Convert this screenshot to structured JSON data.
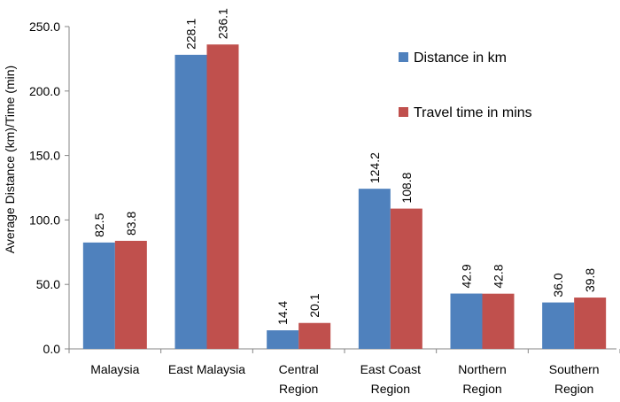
{
  "chart_data": {
    "type": "bar",
    "title": "",
    "xlabel": "",
    "ylabel": "Average Distance (km)/Time (min)",
    "ylim": [
      0,
      250
    ],
    "yticks": [
      0,
      50,
      100,
      150,
      200,
      250
    ],
    "ytick_labels": [
      "0.0",
      "50.0",
      "100.0",
      "150.0",
      "200.0",
      "250.0"
    ],
    "categories": [
      [
        "Malaysia"
      ],
      [
        "East Malaysia"
      ],
      [
        "Central",
        "Region"
      ],
      [
        "East Coast",
        "Region"
      ],
      [
        "Northern",
        "Region"
      ],
      [
        "Southern",
        "Region"
      ]
    ],
    "series": [
      {
        "name": "Distance in km",
        "color": "#4F81BD",
        "values": [
          82.5,
          228.1,
          14.4,
          124.2,
          42.9,
          36.0
        ],
        "labels": [
          "82.5",
          "228.1",
          "14.4",
          "124.2",
          "42.9",
          "36.0"
        ]
      },
      {
        "name": "Travel time in mins",
        "color": "#C0504D",
        "values": [
          83.8,
          236.1,
          20.1,
          108.8,
          42.8,
          39.8
        ],
        "labels": [
          "83.8",
          "236.1",
          "20.1",
          "108.8",
          "42.8",
          "39.8"
        ]
      }
    ],
    "grid": false,
    "legend_position": "top-right"
  }
}
